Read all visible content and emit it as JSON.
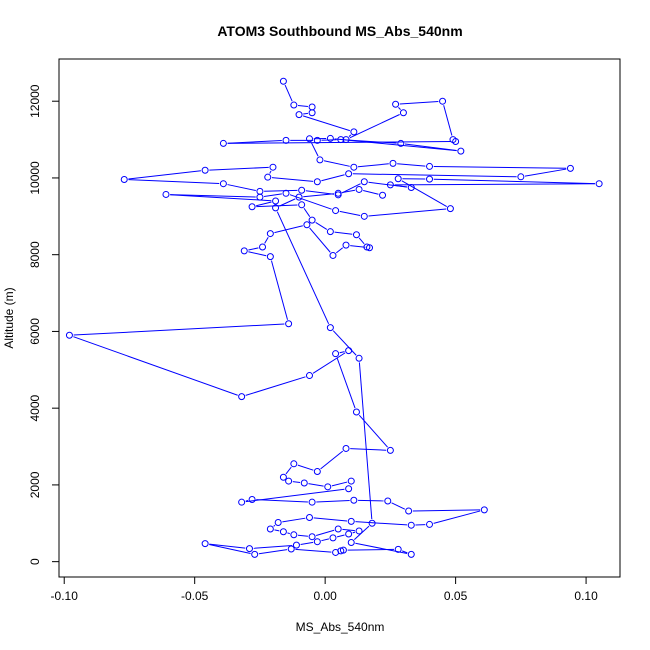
{
  "chart_data": {
    "type": "line",
    "title": "ATOM3 Southbound MS_Abs_540nm",
    "xlabel": "MS_Abs_540nm",
    "ylabel": "Altitude (m)",
    "xlim": [
      -0.102,
      0.113
    ],
    "ylim": [
      -400,
      13100
    ],
    "x_ticks": [
      -0.1,
      -0.05,
      0.0,
      0.05,
      0.1
    ],
    "x_tick_labels": [
      "-0.10",
      "-0.05",
      "0.00",
      "0.05",
      "0.10"
    ],
    "y_ticks": [
      0,
      2000,
      4000,
      6000,
      8000,
      10000,
      12000
    ],
    "y_tick_labels": [
      "0",
      "2000",
      "4000",
      "6000",
      "8000",
      "10000",
      "12000"
    ],
    "grid": false,
    "legend": "none",
    "marker": "open-circle",
    "series": [
      {
        "color": "#0000ff",
        "points": [
          [
            -0.016,
            12520
          ],
          [
            -0.012,
            11900
          ],
          [
            -0.005,
            11850
          ],
          [
            -0.005,
            11700
          ],
          [
            -0.01,
            11650
          ],
          [
            0.011,
            11200
          ],
          [
            0.008,
            11000
          ],
          [
            0.03,
            11700
          ],
          [
            0.027,
            11920
          ],
          [
            0.045,
            12000
          ],
          [
            0.049,
            11000
          ],
          [
            0.05,
            10950
          ],
          [
            -0.039,
            10900
          ],
          [
            -0.015,
            10980
          ],
          [
            -0.003,
            10980
          ],
          [
            0.006,
            11000
          ],
          [
            0.029,
            10900
          ],
          [
            0.052,
            10700
          ],
          [
            0.002,
            11030
          ],
          [
            -0.006,
            11020
          ],
          [
            -0.002,
            10470
          ],
          [
            0.011,
            10280
          ],
          [
            0.026,
            10380
          ],
          [
            0.04,
            10300
          ],
          [
            0.094,
            10250
          ],
          [
            0.075,
            10030
          ],
          [
            0.009,
            10110
          ],
          [
            -0.003,
            9900
          ],
          [
            -0.022,
            10020
          ],
          [
            -0.02,
            10280
          ],
          [
            -0.046,
            10200
          ],
          [
            -0.077,
            9960
          ],
          [
            -0.039,
            9850
          ],
          [
            -0.025,
            9650
          ],
          [
            -0.009,
            9680
          ],
          [
            0.005,
            9560
          ],
          [
            0.015,
            9900
          ],
          [
            0.033,
            9750
          ],
          [
            0.025,
            9820
          ],
          [
            0.105,
            9850
          ],
          [
            0.04,
            9970
          ],
          [
            0.028,
            9980
          ],
          [
            0.048,
            9200
          ],
          [
            0.015,
            9000
          ],
          [
            0.004,
            9150
          ],
          [
            -0.015,
            9600
          ],
          [
            -0.025,
            9500
          ],
          [
            -0.061,
            9570
          ],
          [
            -0.019,
            9400
          ],
          [
            -0.028,
            9250
          ],
          [
            -0.009,
            9300
          ],
          [
            -0.005,
            8900
          ],
          [
            0.002,
            8600
          ],
          [
            0.012,
            8520
          ],
          [
            0.016,
            8200
          ],
          [
            0.017,
            8180
          ],
          [
            0.008,
            8250
          ],
          [
            0.003,
            7980
          ],
          [
            -0.007,
            8780
          ],
          [
            -0.021,
            8550
          ],
          [
            -0.024,
            8200
          ],
          [
            -0.031,
            8100
          ],
          [
            -0.021,
            7950
          ],
          [
            -0.014,
            6200
          ],
          [
            -0.098,
            5900
          ],
          [
            -0.032,
            4300
          ],
          [
            -0.006,
            4850
          ],
          [
            0.009,
            5500
          ],
          [
            0.004,
            5420
          ],
          [
            0.012,
            3900
          ],
          [
            0.025,
            2900
          ],
          [
            0.008,
            2950
          ],
          [
            -0.003,
            2350
          ],
          [
            -0.012,
            2550
          ],
          [
            -0.016,
            2200
          ],
          [
            -0.014,
            2100
          ],
          [
            -0.008,
            2050
          ],
          [
            0.001,
            1950
          ],
          [
            0.01,
            2100
          ],
          [
            0.009,
            1900
          ],
          [
            -0.032,
            1550
          ],
          [
            -0.028,
            1620
          ],
          [
            -0.005,
            1550
          ],
          [
            0.011,
            1600
          ],
          [
            0.024,
            1580
          ],
          [
            0.032,
            1320
          ],
          [
            0.061,
            1350
          ],
          [
            0.04,
            970
          ],
          [
            0.033,
            950
          ],
          [
            0.01,
            1050
          ],
          [
            -0.006,
            1150
          ],
          [
            -0.018,
            1020
          ],
          [
            -0.021,
            850
          ],
          [
            -0.016,
            780
          ],
          [
            -0.012,
            700
          ],
          [
            -0.005,
            650
          ],
          [
            0.005,
            850
          ],
          [
            0.013,
            800
          ],
          [
            0.009,
            720
          ],
          [
            0.003,
            620
          ],
          [
            -0.003,
            520
          ],
          [
            -0.011,
            430
          ],
          [
            -0.029,
            340
          ],
          [
            -0.046,
            470
          ],
          [
            -0.027,
            190
          ],
          [
            -0.013,
            330
          ],
          [
            0.004,
            240
          ],
          [
            0.006,
            280
          ],
          [
            0.007,
            300
          ],
          [
            0.028,
            320
          ],
          [
            0.033,
            190
          ],
          [
            0.01,
            500
          ],
          [
            0.018,
            1000
          ],
          [
            0.013,
            5300
          ],
          [
            0.002,
            6100
          ],
          [
            -0.019,
            9220
          ],
          [
            -0.01,
            9500
          ],
          [
            0.005,
            9600
          ],
          [
            0.013,
            9700
          ],
          [
            0.022,
            9550
          ]
        ]
      }
    ]
  }
}
